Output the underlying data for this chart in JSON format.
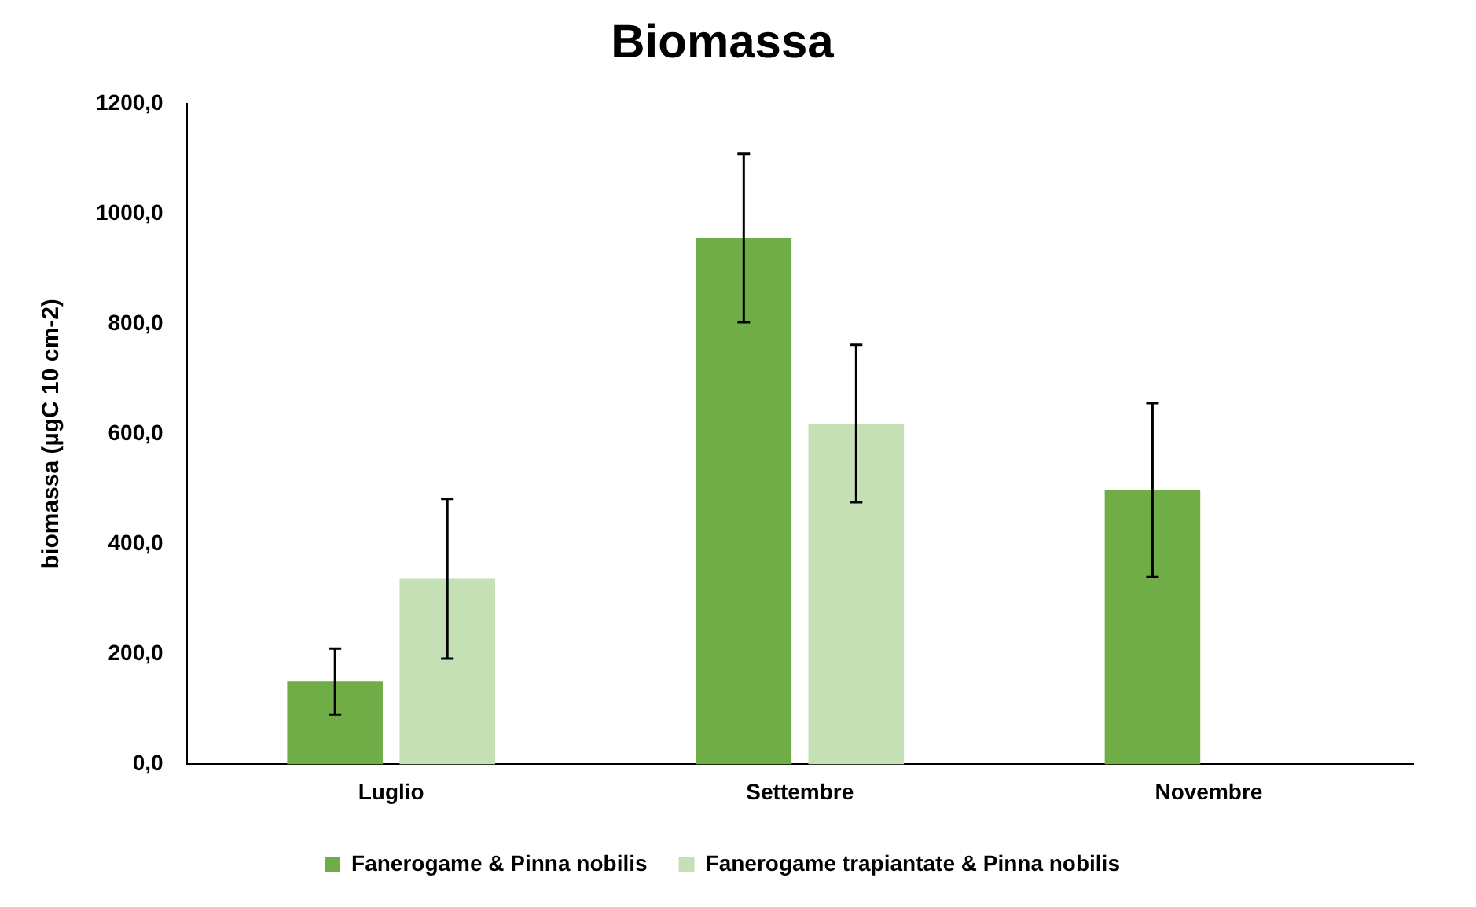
{
  "chart_data": {
    "type": "bar",
    "title": "Biomassa",
    "ylabel": "biomassa (µgC 10 cm-2)",
    "categories": [
      "Luglio",
      "Settembre",
      "Novembre"
    ],
    "series": [
      {
        "name": "Fanerogame & Pinna nobilis",
        "color": "#70ad47",
        "values": [
          150,
          956,
          498
        ],
        "errors": [
          60,
          153,
          158
        ]
      },
      {
        "name": "Fanerogame trapiantate & Pinna nobilis",
        "color": "#c5e0b4",
        "values": [
          337,
          619,
          null
        ],
        "errors": [
          145,
          143,
          null
        ]
      }
    ],
    "ylim": [
      0,
      1200
    ],
    "yticks": [
      {
        "value": 0,
        "label": "0,0"
      },
      {
        "value": 200,
        "label": "200,0"
      },
      {
        "value": 400,
        "label": "400,0"
      },
      {
        "value": 600,
        "label": "600,0"
      },
      {
        "value": 800,
        "label": "800,0"
      },
      {
        "value": 1000,
        "label": "1000,0"
      },
      {
        "value": 1200,
        "label": "1200,0"
      }
    ],
    "grid": false,
    "legend": "bottom"
  }
}
